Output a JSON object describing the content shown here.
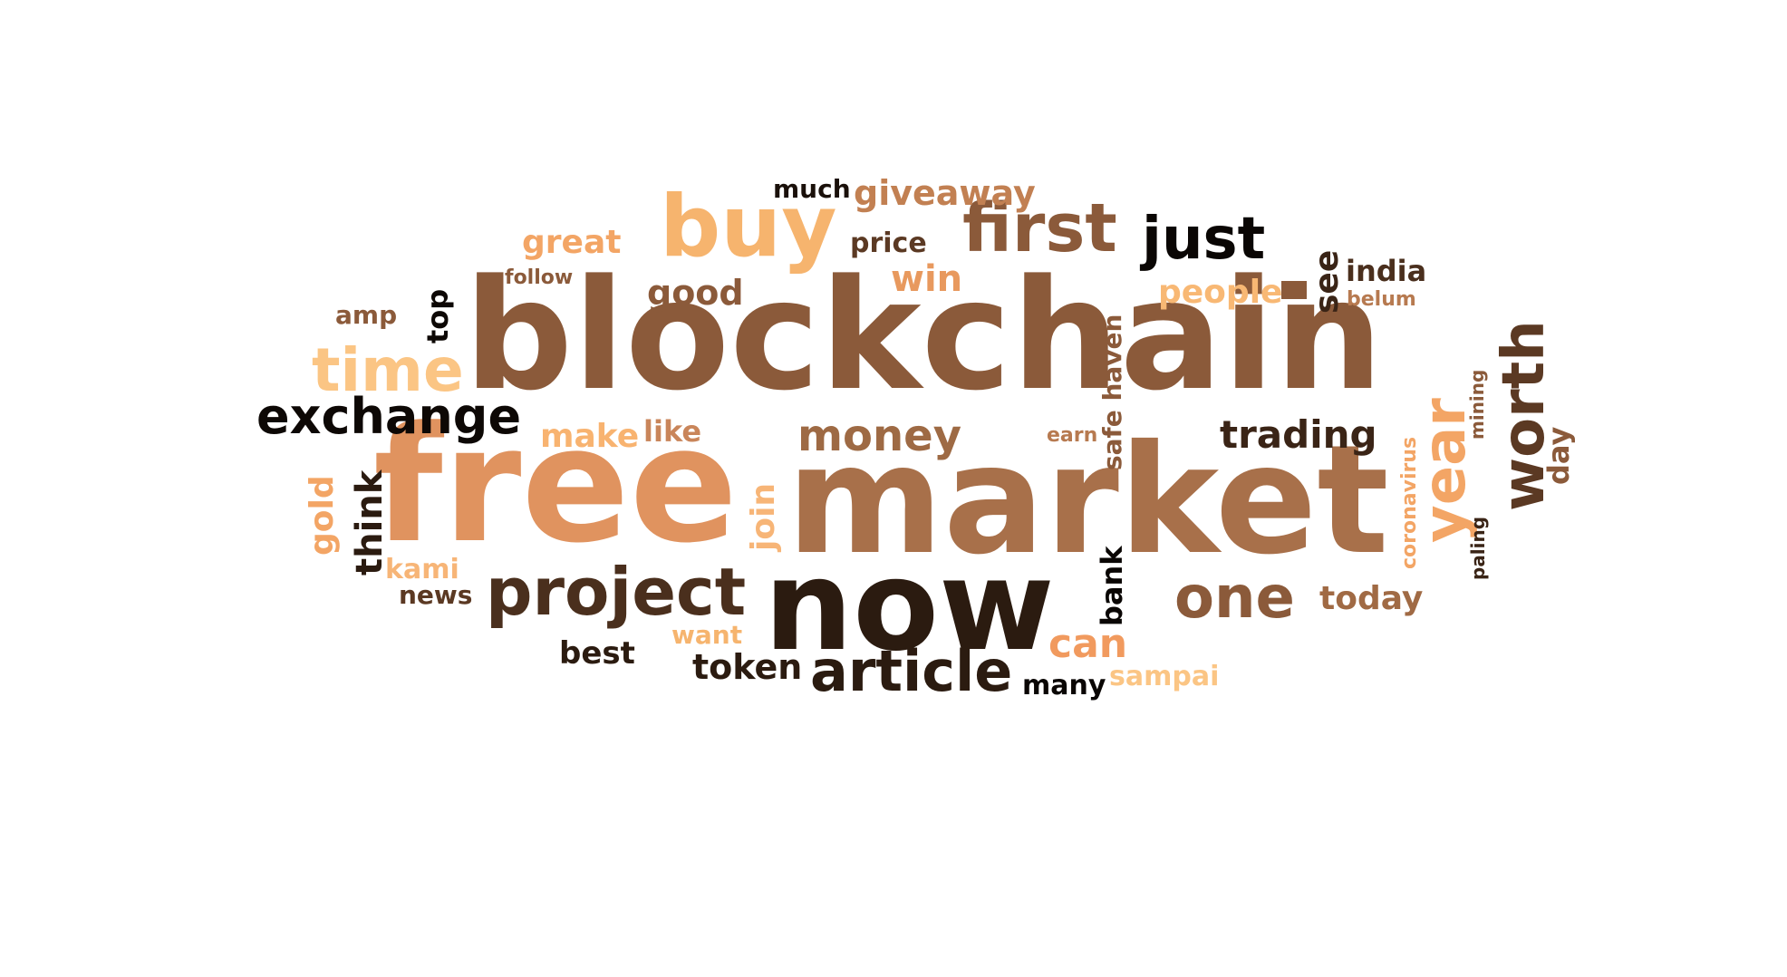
{
  "words": [
    {
      "text": "blockchain",
      "color": "#8b5a3a"
    },
    {
      "text": "free",
      "color": "#e0935f"
    },
    {
      "text": "market",
      "color": "#a8704a"
    },
    {
      "text": "now",
      "color": "#2b1b10"
    },
    {
      "text": "buy",
      "color": "#f6b46e"
    },
    {
      "text": "first",
      "color": "#8b5a3a"
    },
    {
      "text": "just",
      "color": "#0a0604"
    },
    {
      "text": "project",
      "color": "#4a2f1d"
    },
    {
      "text": "one",
      "color": "#8b5a3a"
    },
    {
      "text": "article",
      "color": "#2b1b10"
    },
    {
      "text": "money",
      "color": "#9e6a44"
    },
    {
      "text": "time",
      "color": "#fbc584"
    },
    {
      "text": "exchange",
      "color": "#0d0805"
    },
    {
      "text": "win",
      "color": "#e8995e"
    },
    {
      "text": "can",
      "color": "#f19a5e"
    },
    {
      "text": "trading",
      "color": "#3a2416"
    },
    {
      "text": "giveaway",
      "color": "#c28052"
    },
    {
      "text": "great",
      "color": "#f3a565"
    },
    {
      "text": "good",
      "color": "#8b5a3a"
    },
    {
      "text": "people",
      "color": "#f8b874"
    },
    {
      "text": "india",
      "color": "#4a2f1d"
    },
    {
      "text": "token",
      "color": "#2b1b10"
    },
    {
      "text": "today",
      "color": "#a06a44"
    },
    {
      "text": "best",
      "color": "#2b1b10"
    },
    {
      "text": "make",
      "color": "#f8b370"
    },
    {
      "text": "like",
      "color": "#c9855a"
    },
    {
      "text": "amp",
      "color": "#8b5a3a"
    },
    {
      "text": "price",
      "color": "#5b3923"
    },
    {
      "text": "much",
      "color": "#1a100a"
    },
    {
      "text": "follow",
      "color": "#8b5a3a"
    },
    {
      "text": "kami",
      "color": "#f7b577"
    },
    {
      "text": "news",
      "color": "#5b3923"
    },
    {
      "text": "want",
      "color": "#f6b46e"
    },
    {
      "text": "many",
      "color": "#0a0604"
    },
    {
      "text": "sampai",
      "color": "#fbc584"
    },
    {
      "text": "earn",
      "color": "#b77a50"
    },
    {
      "text": "belum",
      "color": "#b77a50"
    },
    {
      "text": "year",
      "color": "#f3a565"
    },
    {
      "text": "worth",
      "color": "#5b3923"
    },
    {
      "text": "join",
      "color": "#f7b577"
    },
    {
      "text": "think",
      "color": "#2b1b10"
    },
    {
      "text": "gold",
      "color": "#f3a565"
    },
    {
      "text": "see",
      "color": "#3a2416"
    },
    {
      "text": "top",
      "color": "#0d0805"
    },
    {
      "text": "bank",
      "color": "#0a0604"
    },
    {
      "text": "safe haven",
      "color": "#8b5a3a"
    },
    {
      "text": "mining",
      "color": "#8b5a3a"
    },
    {
      "text": "day",
      "color": "#8b5a3a"
    },
    {
      "text": "coronavirus",
      "color": "#f3a565"
    },
    {
      "text": "paling",
      "color": "#3a2416"
    }
  ]
}
